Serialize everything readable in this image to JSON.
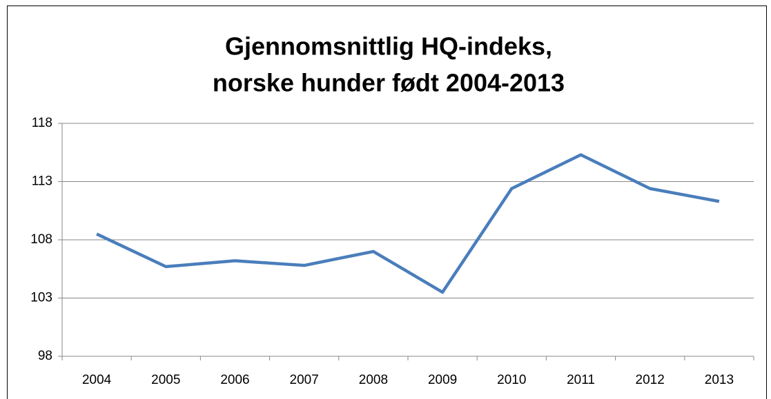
{
  "chart_data": {
    "type": "line",
    "title": [
      "Gjennomsnittlig HQ-indeks,",
      "norske hunder født 2004-2013"
    ],
    "categories": [
      "2004",
      "2005",
      "2006",
      "2007",
      "2008",
      "2009",
      "2010",
      "2011",
      "2012",
      "2013"
    ],
    "series": [
      {
        "color": "#4a7ebb",
        "values": [
          108.5,
          105.7,
          106.2,
          105.8,
          107.0,
          103.5,
          112.4,
          115.3,
          112.4,
          111.3
        ]
      }
    ],
    "ylim": [
      98,
      118
    ],
    "yticks": [
      98,
      103,
      108,
      113,
      118
    ],
    "grid": true
  }
}
